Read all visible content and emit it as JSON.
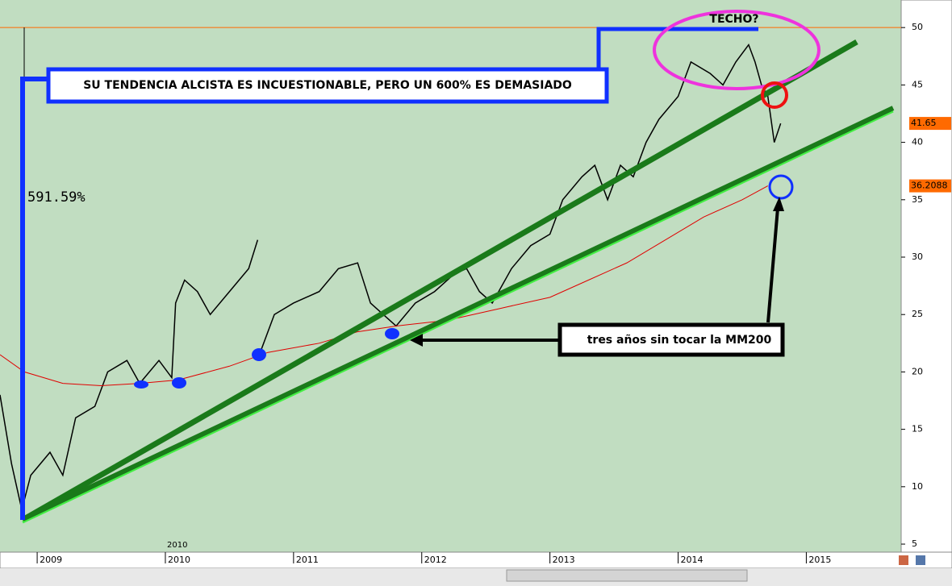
{
  "chart_data": {
    "type": "line",
    "xlim": [
      2008.71,
      2015.74
    ],
    "xticks": [
      2009,
      2010,
      2011,
      2012,
      2013,
      2014,
      2015
    ],
    "ylim": [
      4.3,
      52.4
    ],
    "yticks": [
      5,
      10,
      15,
      20,
      25,
      30,
      35,
      40,
      45,
      50
    ],
    "reference_line": 50,
    "reference_color": "#ff6a00",
    "series": [
      {
        "color": "#000000",
        "x": [
          2008.71,
          2008.8,
          2008.88,
          2008.95,
          2009.1,
          2009.2,
          2009.3,
          2009.45,
          2009.55,
          2009.7,
          2009.8,
          2009.95,
          2010.05,
          2010.08,
          2010.15,
          2010.25,
          2010.35,
          2010.5,
          2010.65,
          2010.72,
          2010.73,
          2010.75,
          2010.85,
          2011.0,
          2011.2,
          2011.35,
          2011.5,
          2011.6,
          2011.7,
          2011.8,
          2011.95,
          2012.1,
          2012.25,
          2012.35,
          2012.45,
          2012.55,
          2012.7,
          2012.85,
          2013.0,
          2013.1,
          2013.25,
          2013.35,
          2013.45,
          2013.55,
          2013.65,
          2013.75,
          2013.85,
          2014.0,
          2014.1,
          2014.25,
          2014.35,
          2014.45,
          2014.55,
          2014.6,
          2014.65,
          2014.7,
          2014.75,
          2014.8
        ],
        "values": [
          18,
          12,
          8,
          11,
          13,
          11,
          16,
          17,
          20,
          21,
          19,
          21,
          19.5,
          26,
          28,
          27,
          25,
          27,
          29,
          31.5,
          null,
          22,
          25,
          26,
          27,
          29,
          29.5,
          26,
          25,
          24,
          26,
          27,
          28.5,
          29,
          27,
          26,
          29,
          31,
          32,
          35,
          37,
          38,
          35,
          38,
          37,
          40,
          42,
          44,
          47,
          46,
          45,
          47,
          48.5,
          47,
          45,
          44,
          40,
          41.65
        ]
      },
      {
        "color": "#e00000",
        "x": [
          2008.71,
          2008.9,
          2009.2,
          2009.5,
          2009.8,
          2010.1,
          2010.5,
          2010.8,
          2011.2,
          2011.5,
          2011.8,
          2012.2,
          2012.6,
          2013.0,
          2013.3,
          2013.6,
          2013.9,
          2014.2,
          2014.5,
          2014.7
        ],
        "values": [
          21.5,
          20,
          19,
          18.8,
          19,
          19.3,
          20.5,
          21.7,
          22.5,
          23.5,
          24,
          24.5,
          25.5,
          26.5,
          28,
          29.5,
          31.5,
          33.5,
          35,
          36.2088
        ]
      }
    ],
    "price_tags": [
      {
        "value": 41.65,
        "color": "#ff6a00"
      },
      {
        "value": 36.2088,
        "color": "#ff6a00"
      }
    ],
    "annotations": {
      "banner": "SU TENDENCIA ALCISTA ES INCUESTIONABLE, PERO UN 600% ES DEMASIADO",
      "gain": "591.59%",
      "ceiling": "TECHO?",
      "note": "tres años sin tocar la MM200",
      "year_marker": "2010"
    }
  }
}
